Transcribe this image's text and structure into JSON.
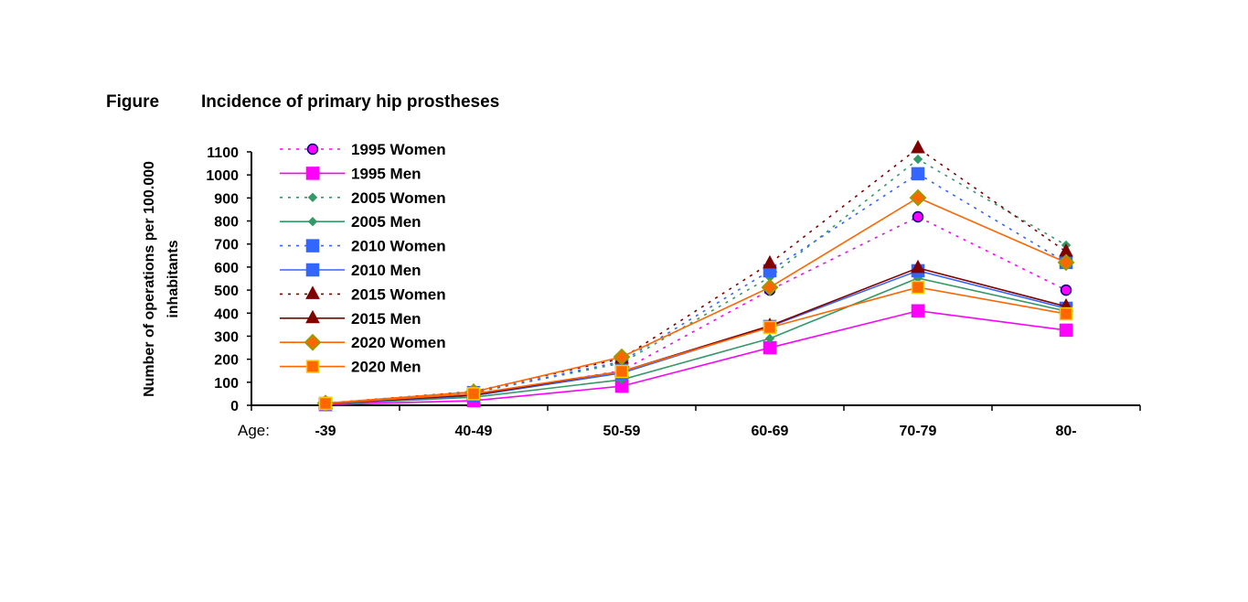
{
  "figure_label": "Figure",
  "chart_data": {
    "type": "line",
    "title": "Incidence of primary hip prostheses",
    "ylabel": "Number of operations per 100.000 inhabitants",
    "ylabel_lines": [
      "Number of operations per 100.000",
      "inhabitants"
    ],
    "xlabel": "Age:",
    "categories": [
      "-39",
      "40-49",
      "50-59",
      "60-69",
      "70-79",
      "80-"
    ],
    "ylim": [
      0,
      1100
    ],
    "yticks": [
      0,
      100,
      200,
      300,
      400,
      500,
      600,
      700,
      800,
      900,
      1000,
      1100
    ],
    "grid": false,
    "legend_position": "top-left",
    "series": [
      {
        "name": "1995 Women",
        "color": "#ff00ff",
        "dash": "dotted",
        "marker": "circle",
        "marker_fill": "#ff00ff",
        "marker_stroke": "#000080",
        "values": [
          5,
          45,
          150,
          500,
          818,
          500
        ]
      },
      {
        "name": "1995 Men",
        "color": "#ff00ff",
        "dash": "solid",
        "marker": "square",
        "marker_fill": "#ff00ff",
        "marker_stroke": "#ff00ff",
        "values": [
          3,
          20,
          83,
          250,
          410,
          326
        ]
      },
      {
        "name": "2005 Women",
        "color": "#339966",
        "dash": "dotted",
        "marker": "diamond-small",
        "marker_fill": "#339966",
        "marker_stroke": "#339966",
        "values": [
          7,
          55,
          183,
          556,
          1068,
          695
        ]
      },
      {
        "name": "2005 Men",
        "color": "#339966",
        "dash": "solid",
        "marker": "diamond-small",
        "marker_fill": "#339966",
        "marker_stroke": "#339966",
        "values": [
          5,
          35,
          111,
          290,
          552,
          409
        ]
      },
      {
        "name": "2010 Women",
        "color": "#3366ff",
        "dash": "dotted",
        "marker": "square",
        "marker_fill": "#3366ff",
        "marker_stroke": "#3366ff",
        "values": [
          8,
          55,
          190,
          584,
          1005,
          620
        ]
      },
      {
        "name": "2010 Men",
        "color": "#3366ff",
        "dash": "solid",
        "marker": "square",
        "marker_fill": "#3366ff",
        "marker_stroke": "#3366ff",
        "values": [
          6,
          42,
          140,
          342,
          584,
          421
        ]
      },
      {
        "name": "2015 Women",
        "color": "#800000",
        "dash": "dotted",
        "marker": "triangle",
        "marker_fill": "#800000",
        "marker_stroke": "#800000",
        "values": [
          9,
          60,
          203,
          616,
          1116,
          667
        ]
      },
      {
        "name": "2015 Men",
        "color": "#800000",
        "dash": "solid",
        "marker": "triangle",
        "marker_fill": "#800000",
        "marker_stroke": "#800000",
        "values": [
          7,
          45,
          147,
          345,
          596,
          429
        ]
      },
      {
        "name": "2020 Women",
        "color": "#ff6600",
        "dash": "solid",
        "marker": "diamond",
        "marker_fill": "#ff6600",
        "marker_stroke": "#999900",
        "values": [
          9,
          58,
          210,
          512,
          901,
          620
        ]
      },
      {
        "name": "2020 Men",
        "color": "#ff6600",
        "dash": "solid",
        "marker": "square",
        "marker_fill": "#ff6600",
        "marker_stroke": "#ffcc00",
        "values": [
          8,
          50,
          147,
          338,
          512,
          397
        ]
      }
    ]
  }
}
